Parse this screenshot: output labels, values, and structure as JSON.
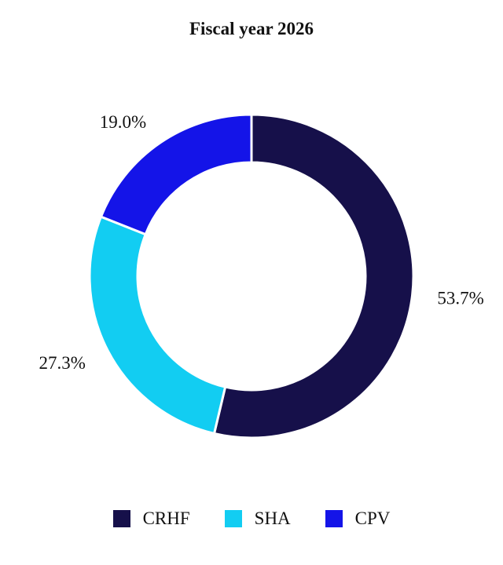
{
  "chart_data": {
    "type": "pie",
    "variant": "donut",
    "title": "Fiscal year 2026",
    "slices": [
      {
        "name": "CRHF",
        "value": 53.7,
        "label": "53.7%",
        "color": "#16104a"
      },
      {
        "name": "SHA",
        "value": 27.3,
        "label": "27.3%",
        "color": "#12cdf2"
      },
      {
        "name": "CPV",
        "value": 19.0,
        "label": "19.0%",
        "color": "#1414e8"
      }
    ],
    "start": "12 o'clock",
    "direction": "clockwise",
    "legend_position": "bottom"
  }
}
